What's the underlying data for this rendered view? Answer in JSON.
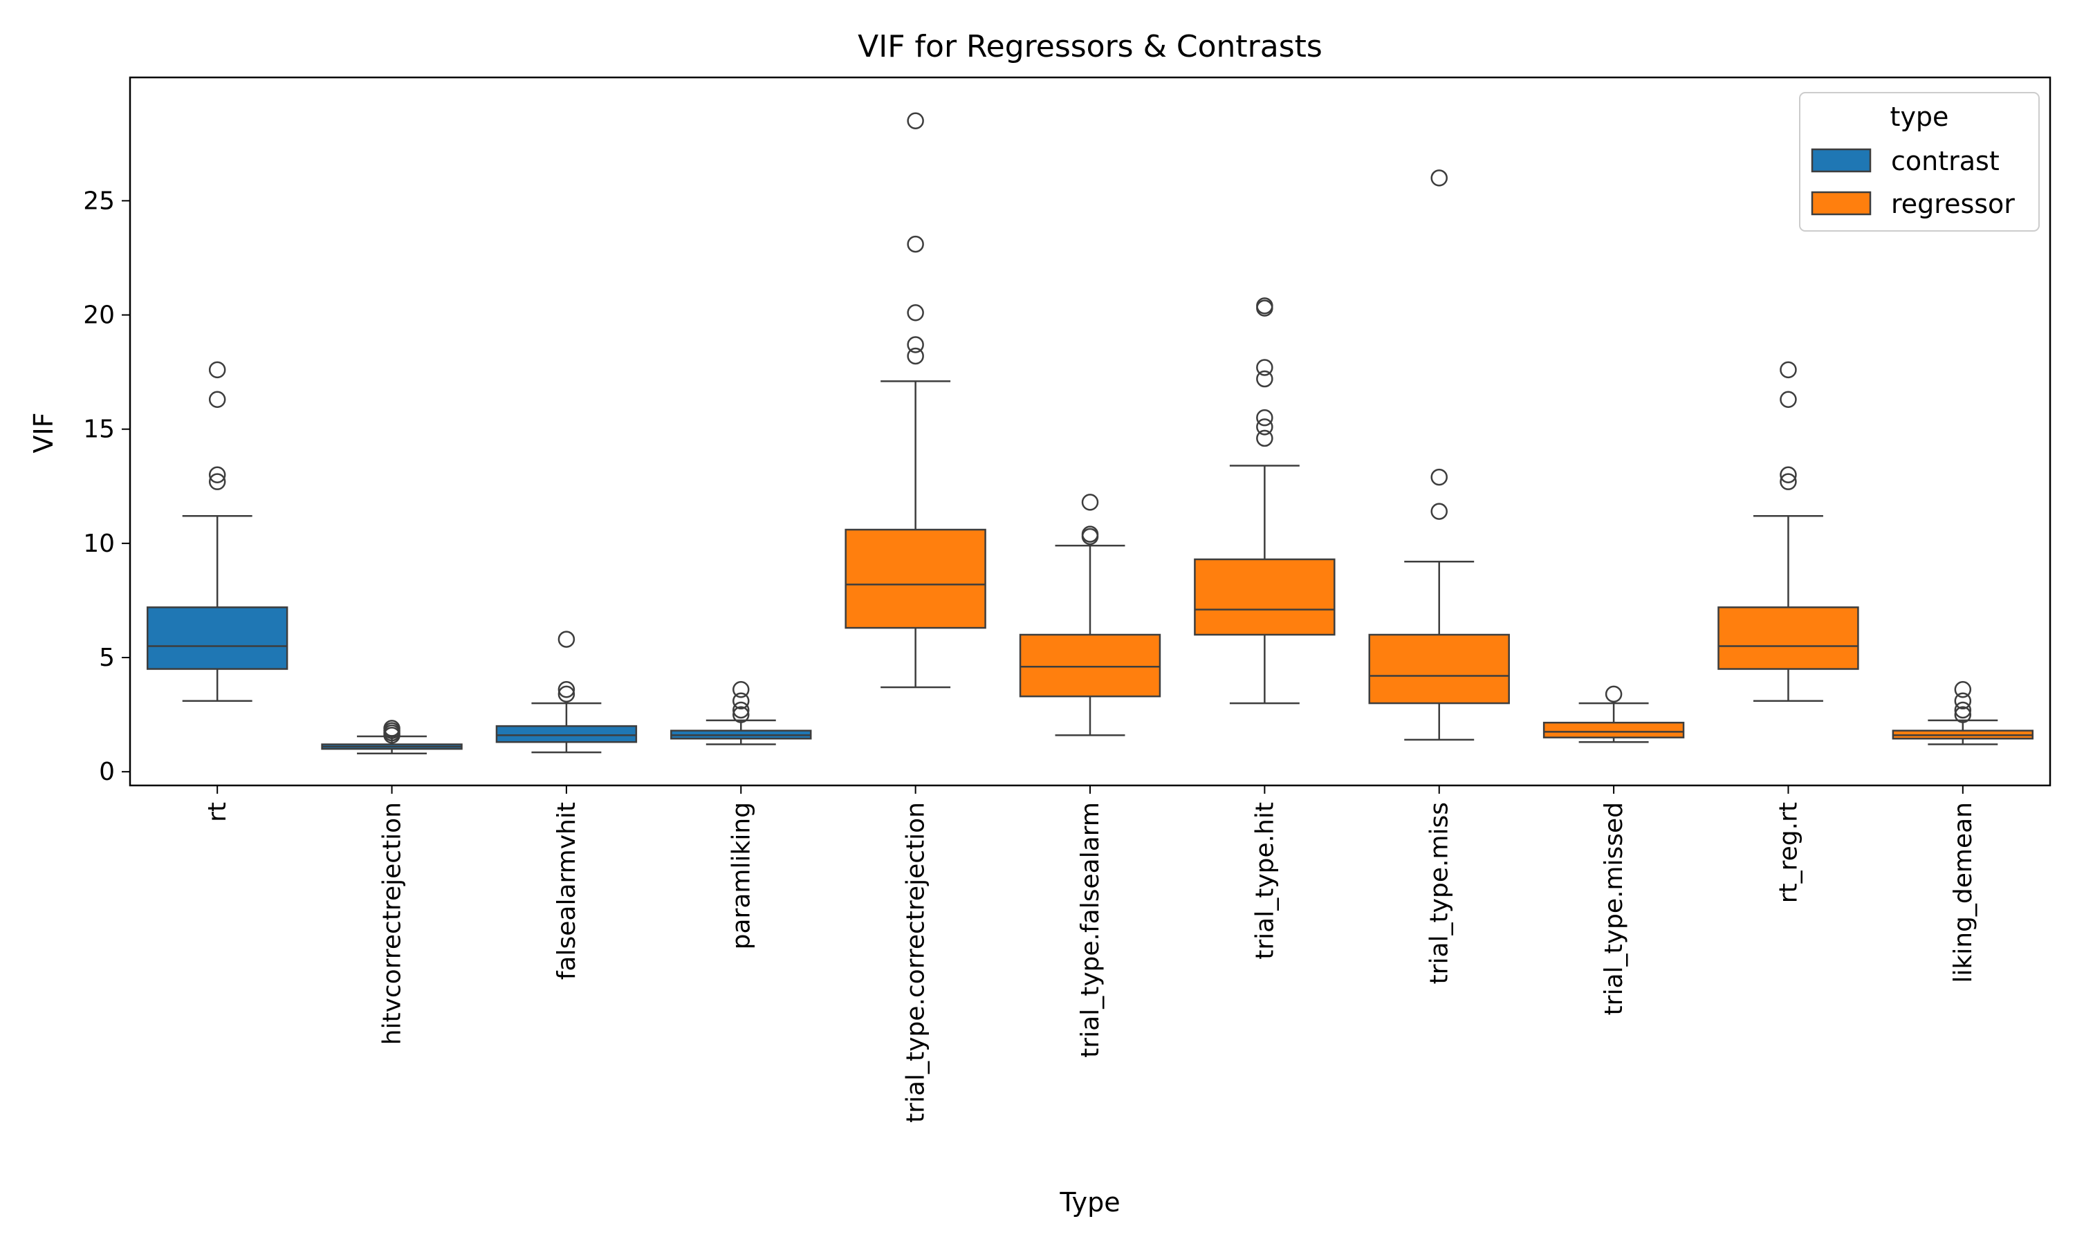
{
  "chart_data": {
    "type": "box",
    "title": "VIF for Regressors & Contrasts",
    "xlabel": "Type",
    "ylabel": "VIF",
    "ylim": [
      -0.6,
      30.4
    ],
    "yticks": [
      0,
      5,
      10,
      15,
      20,
      25
    ],
    "grid": false,
    "legend": {
      "title": "type",
      "placement": "top-right",
      "entries": [
        {
          "name": "contrast",
          "color": "#1f77b4"
        },
        {
          "name": "regressor",
          "color": "#ff7f0e"
        }
      ]
    },
    "categories": [
      {
        "label": "rt",
        "type": "contrast",
        "whisker_low": 3.1,
        "q1": 4.5,
        "median": 5.5,
        "q3": 7.2,
        "whisker_high": 11.2,
        "outliers": [
          12.7,
          13.0,
          16.3,
          17.6
        ]
      },
      {
        "label": "hitvcorrectrejection",
        "type": "contrast",
        "whisker_low": 0.8,
        "q1": 1.0,
        "median": 1.1,
        "q3": 1.2,
        "whisker_high": 1.55,
        "outliers": [
          1.6,
          1.7,
          1.8,
          1.9
        ]
      },
      {
        "label": "falsealarmvhit",
        "type": "contrast",
        "whisker_low": 0.85,
        "q1": 1.3,
        "median": 1.6,
        "q3": 2.0,
        "whisker_high": 3.0,
        "outliers": [
          3.4,
          3.6,
          5.8
        ]
      },
      {
        "label": "paramliking",
        "type": "contrast",
        "whisker_low": 1.2,
        "q1": 1.45,
        "median": 1.6,
        "q3": 1.8,
        "whisker_high": 2.25,
        "outliers": [
          2.5,
          2.7,
          3.1,
          3.6
        ]
      },
      {
        "label": "trial_type.correctrejection",
        "type": "regressor",
        "whisker_low": 3.7,
        "q1": 6.3,
        "median": 8.2,
        "q3": 10.6,
        "whisker_high": 17.1,
        "outliers": [
          18.2,
          18.7,
          20.1,
          23.1,
          28.5
        ]
      },
      {
        "label": "trial_type.falsealarm",
        "type": "regressor",
        "whisker_low": 1.6,
        "q1": 3.3,
        "median": 4.6,
        "q3": 6.0,
        "whisker_high": 9.9,
        "outliers": [
          10.3,
          10.4,
          11.8
        ]
      },
      {
        "label": "trial_type.hit",
        "type": "regressor",
        "whisker_low": 3.0,
        "q1": 6.0,
        "median": 7.1,
        "q3": 9.3,
        "whisker_high": 13.4,
        "outliers": [
          14.6,
          15.1,
          15.5,
          17.2,
          17.7,
          20.3,
          20.4
        ]
      },
      {
        "label": "trial_type.miss",
        "type": "regressor",
        "whisker_low": 1.4,
        "q1": 3.0,
        "median": 4.2,
        "q3": 6.0,
        "whisker_high": 9.2,
        "outliers": [
          11.4,
          12.9,
          26.0
        ]
      },
      {
        "label": "trial_type.missed",
        "type": "regressor",
        "whisker_low": 1.3,
        "q1": 1.5,
        "median": 1.75,
        "q3": 2.15,
        "whisker_high": 3.0,
        "outliers": [
          3.4
        ]
      },
      {
        "label": "rt_reg.rt",
        "type": "regressor",
        "whisker_low": 3.1,
        "q1": 4.5,
        "median": 5.5,
        "q3": 7.2,
        "whisker_high": 11.2,
        "outliers": [
          12.7,
          13.0,
          16.3,
          17.6
        ]
      },
      {
        "label": "liking_demean",
        "type": "regressor",
        "whisker_low": 1.2,
        "q1": 1.45,
        "median": 1.6,
        "q3": 1.8,
        "whisker_high": 2.25,
        "outliers": [
          2.5,
          2.7,
          3.1,
          3.6
        ]
      }
    ]
  }
}
